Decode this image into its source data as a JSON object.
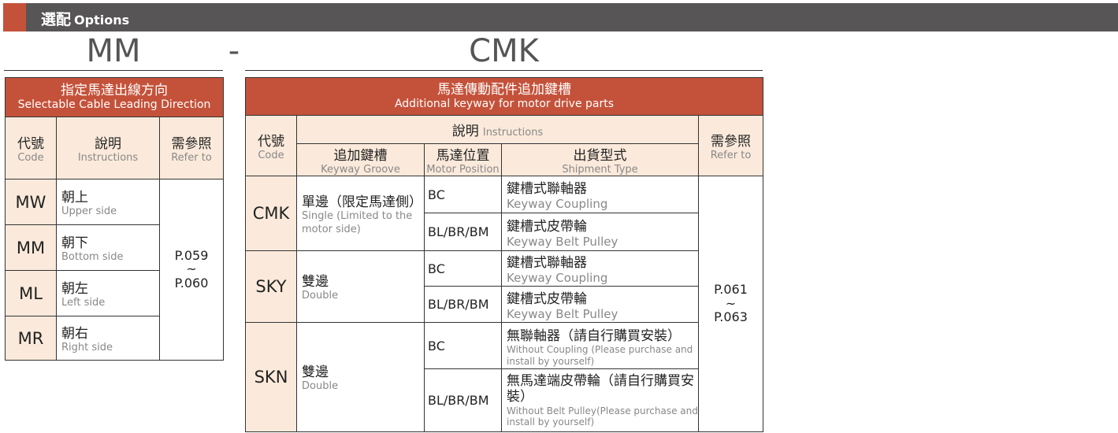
{
  "header": {
    "title_zh": "選配",
    "title_en": "Options"
  },
  "codes": {
    "left": "MM",
    "dash": "-",
    "right": "CMK"
  },
  "left_table": {
    "title_zh": "指定馬達出線方向",
    "title_en": "Selectable Cable Leading Direction",
    "col_code_zh": "代號",
    "col_code_en": "Code",
    "col_desc_zh": "說明",
    "col_desc_en": "Instructions",
    "col_ref_zh": "需參照",
    "col_ref_en": "Refer to",
    "rows": [
      {
        "code": "MW",
        "zh": "朝上",
        "en": "Upper side"
      },
      {
        "code": "MM",
        "zh": "朝下",
        "en": "Bottom side"
      },
      {
        "code": "ML",
        "zh": "朝左",
        "en": "Left side"
      },
      {
        "code": "MR",
        "zh": "朝右",
        "en": "Right side"
      }
    ],
    "ref_from": "P.059",
    "ref_sep": "~",
    "ref_to": "P.060"
  },
  "right_table": {
    "title_zh": "馬達傳動配件追加鍵槽",
    "title_en": "Additional keyway for motor drive parts",
    "col_code_zh": "代號",
    "col_code_en": "Code",
    "col_desc_zh": "說明",
    "col_desc_en": "Instructions",
    "col_groove_zh": "追加鍵槽",
    "col_groove_en": "Keyway Groove",
    "col_pos_zh": "馬達位置",
    "col_pos_en": "Motor Position",
    "col_ship_zh": "出貨型式",
    "col_ship_en": "Shipment Type",
    "col_ref_zh": "需參照",
    "col_ref_en": "Refer to",
    "groups": [
      {
        "code": "CMK",
        "zh": "單邊（限定馬達側）",
        "en": "Single (Limited to the motor side)",
        "rows": [
          {
            "pos": "BC",
            "zh": "鍵槽式聯軸器",
            "en": "Keyway Coupling"
          },
          {
            "pos": "BL/BR/BM",
            "zh": "鍵槽式皮帶輪",
            "en": "Keyway Belt Pulley"
          }
        ]
      },
      {
        "code": "SKY",
        "zh": "雙邊",
        "en": "Double",
        "rows": [
          {
            "pos": "BC",
            "zh": "鍵槽式聯軸器",
            "en": "Keyway Coupling"
          },
          {
            "pos": "BL/BR/BM",
            "zh": "鍵槽式皮帶輪",
            "en": "Keyway Belt Pulley"
          }
        ]
      },
      {
        "code": "SKN",
        "zh": "雙邊",
        "en": "Double",
        "rows": [
          {
            "pos": "BC",
            "zh": "無聯軸器（請自行購買安裝）",
            "en": "Without Coupling (Please purchase and install by yourself)"
          },
          {
            "pos": "BL/BR/BM",
            "zh": "無馬達端皮帶輪（請自行購買安裝）",
            "en": "Without Belt Pulley(Please purchase and install by yourself)"
          }
        ]
      }
    ],
    "ref_from": "P.061",
    "ref_sep": "~",
    "ref_to": "P.063"
  },
  "colors": {
    "accent": "#c4523a",
    "bar": "#575556",
    "cream": "#fbeadb"
  }
}
